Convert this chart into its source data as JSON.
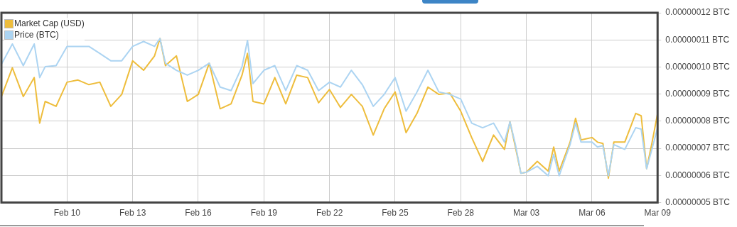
{
  "chart_data": {
    "type": "line",
    "xlim": [
      "--02-07",
      "--03-09"
    ],
    "xticks": [
      {
        "value": "--02-10",
        "label": "Feb 10"
      },
      {
        "value": "--02-13",
        "label": "Feb 13"
      },
      {
        "value": "--02-16",
        "label": "Feb 16"
      },
      {
        "value": "--02-19",
        "label": "Feb 19"
      },
      {
        "value": "--02-22",
        "label": "Feb 22"
      },
      {
        "value": "--02-25",
        "label": "Feb 25"
      },
      {
        "value": "--02-28",
        "label": "Feb 28"
      },
      {
        "value": "--03-03",
        "label": "Mar 03"
      },
      {
        "value": "--03-06",
        "label": "Mar 06"
      },
      {
        "value": "--03-09",
        "label": "Mar 09"
      }
    ],
    "ylim": [
      5e-08,
      1.2e-07
    ],
    "yticks": [
      {
        "value": 5e-08,
        "label": "0.00000005 BTC"
      },
      {
        "value": 6e-08,
        "label": "0.00000006 BTC"
      },
      {
        "value": 7e-08,
        "label": "0.00000007 BTC"
      },
      {
        "value": 8e-08,
        "label": "0.00000008 BTC"
      },
      {
        "value": 9e-08,
        "label": "0.00000009 BTC"
      },
      {
        "value": 1e-07,
        "label": "0.00000010 BTC"
      },
      {
        "value": 1.1e-07,
        "label": "0.00000011 BTC"
      },
      {
        "value": 1.2e-07,
        "label": "0.00000012 BTC"
      }
    ],
    "x": [
      "--02-07T00:00",
      "--02-07T12:00",
      "--02-08T00:00",
      "--02-08T12:00",
      "--02-08T18:00",
      "--02-09T00:00",
      "--02-09T12:00",
      "--02-10T00:00",
      "--02-10T12:00",
      "--02-11T00:00",
      "--02-11T12:00",
      "--02-12T00:00",
      "--02-12T12:00",
      "--02-13T00:00",
      "--02-13T12:00",
      "--02-14T00:00",
      "--02-14T06:00",
      "--02-14T12:00",
      "--02-15T00:00",
      "--02-15T12:00",
      "--02-16T00:00",
      "--02-16T12:00",
      "--02-17T00:00",
      "--02-17T12:00",
      "--02-18T00:00",
      "--02-18T06:00",
      "--02-18T12:00",
      "--02-19T00:00",
      "--02-19T12:00",
      "--02-20T00:00",
      "--02-20T12:00",
      "--02-21T00:00",
      "--02-21T12:00",
      "--02-22T00:00",
      "--02-22T12:00",
      "--02-23T00:00",
      "--02-23T12:00",
      "--02-24T00:00",
      "--02-24T12:00",
      "--02-25T00:00",
      "--02-25T12:00",
      "--02-26T00:00",
      "--02-26T12:00",
      "--02-27T00:00",
      "--02-27T12:00",
      "--02-28T00:00",
      "--02-28T12:00",
      "--03-01T00:00",
      "--03-01T12:00",
      "--03-02T00:00",
      "--03-02T06:00",
      "--03-02T12:00",
      "--03-02T18:00",
      "--03-03T00:00",
      "--03-03T12:00",
      "--03-04T00:00",
      "--03-04T06:00",
      "--03-04T12:00",
      "--03-05T00:00",
      "--03-05T06:00",
      "--03-05T12:00",
      "--03-06T00:00",
      "--03-06T06:00",
      "--03-06T12:00",
      "--03-06T18:00",
      "--03-07T00:00",
      "--03-07T12:00",
      "--03-08T00:00",
      "--03-08T06:00",
      "--03-08T12:00",
      "--03-08T18:00",
      "--03-09T00:00"
    ],
    "series": [
      {
        "name": "Market Cap (USD)",
        "color": "#eebd3c",
        "values": [
          8.91e-08,
          9.97e-08,
          8.91e-08,
          9.61e-08,
          7.93e-08,
          8.73e-08,
          8.55e-08,
          9.44e-08,
          9.52e-08,
          9.35e-08,
          9.44e-08,
          8.55e-08,
          8.99e-08,
          1.023e-07,
          9.88e-08,
          1.041e-07,
          1.105e-07,
          1.005e-07,
          1.041e-07,
          8.73e-08,
          8.99e-08,
          1.014e-07,
          8.46e-08,
          8.64e-08,
          9.7e-08,
          1.05e-07,
          8.73e-08,
          8.64e-08,
          9.61e-08,
          8.64e-08,
          9.7e-08,
          9.61e-08,
          8.68e-08,
          9.17e-08,
          8.51e-08,
          8.99e-08,
          8.55e-08,
          7.49e-08,
          8.46e-08,
          9.08e-08,
          7.58e-08,
          8.29e-08,
          9.26e-08,
          8.99e-08,
          9.04e-08,
          8.37e-08,
          7.4e-08,
          6.52e-08,
          7.49e-08,
          6.96e-08,
          7.98e-08,
          7.05e-08,
          6.08e-08,
          6.12e-08,
          6.52e-08,
          6.16e-08,
          7.05e-08,
          6.16e-08,
          7.23e-08,
          8.11e-08,
          7.31e-08,
          7.4e-08,
          7.23e-08,
          7.18e-08,
          5.9e-08,
          7.23e-08,
          7.23e-08,
          8.29e-08,
          8.2e-08,
          6.25e-08,
          7.23e-08,
          8.29e-08
        ]
      },
      {
        "name": "Price (BTC)",
        "color": "#acd4f2",
        "values": [
          1.01e-07,
          1.085e-07,
          1.005e-07,
          1.085e-07,
          9.61e-08,
          1.001e-07,
          1.005e-07,
          1.076e-07,
          1.076e-07,
          1.076e-07,
          1.05e-07,
          1.023e-07,
          1.023e-07,
          1.076e-07,
          1.094e-07,
          1.076e-07,
          1.105e-07,
          1.014e-07,
          9.88e-08,
          9.7e-08,
          9.88e-08,
          1.014e-07,
          9.26e-08,
          9.13e-08,
          1.001e-07,
          1.098e-07,
          9.39e-08,
          9.88e-08,
          1.005e-07,
          9.13e-08,
          1.005e-07,
          9.88e-08,
          9.13e-08,
          9.44e-08,
          9.26e-08,
          9.88e-08,
          9.35e-08,
          8.55e-08,
          8.99e-08,
          9.61e-08,
          8.37e-08,
          9.08e-08,
          9.88e-08,
          9.08e-08,
          8.99e-08,
          8.82e-08,
          7.93e-08,
          7.76e-08,
          7.93e-08,
          7.23e-08,
          7.98e-08,
          7.14e-08,
          6.08e-08,
          6.12e-08,
          6.34e-08,
          5.99e-08,
          6.78e-08,
          5.99e-08,
          7.14e-08,
          7.93e-08,
          7.23e-08,
          7.23e-08,
          7.05e-08,
          7.1e-08,
          5.99e-08,
          7.14e-08,
          6.96e-08,
          7.76e-08,
          7.71e-08,
          6.25e-08,
          7e-08,
          7.76e-08
        ]
      }
    ],
    "grid": true,
    "legend": "top left",
    "marker": "none",
    "line_style": "solid"
  }
}
